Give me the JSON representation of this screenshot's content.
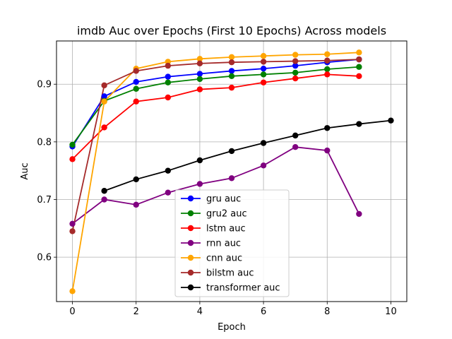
{
  "chart_data": {
    "type": "line",
    "title": "imdb Auc over Epochs (First 10 Epochs) Across models",
    "xlabel": "Epoch",
    "ylabel": "Auc",
    "xlim": [
      -0.5,
      10.5
    ],
    "ylim": [
      0.523,
      0.975
    ],
    "xticks": [
      0,
      2,
      4,
      6,
      8,
      10
    ],
    "yticks": [
      0.6,
      0.7,
      0.8,
      0.9
    ],
    "xtick_labels": [
      "0",
      "2",
      "4",
      "6",
      "8",
      "10"
    ],
    "ytick_labels": [
      "0.6",
      "0.7",
      "0.8",
      "0.9"
    ],
    "grid": true,
    "legend_position": "lower-center",
    "series": [
      {
        "name": "gru auc",
        "color": "#0000ff",
        "x": [
          0,
          1,
          2,
          3,
          4,
          5,
          6,
          7,
          8,
          9
        ],
        "y": [
          0.792,
          0.879,
          0.904,
          0.913,
          0.918,
          0.923,
          0.927,
          0.932,
          0.938,
          0.943
        ]
      },
      {
        "name": "gru2 auc",
        "color": "#008000",
        "x": [
          0,
          1,
          2,
          3,
          4,
          5,
          6,
          7,
          8,
          9
        ],
        "y": [
          0.795,
          0.871,
          0.892,
          0.903,
          0.909,
          0.914,
          0.917,
          0.92,
          0.926,
          0.93
        ]
      },
      {
        "name": "lstm auc",
        "color": "#ff0000",
        "x": [
          0,
          1,
          2,
          3,
          4,
          5,
          6,
          7,
          8,
          9
        ],
        "y": [
          0.77,
          0.825,
          0.87,
          0.877,
          0.891,
          0.894,
          0.903,
          0.91,
          0.917,
          0.914
        ]
      },
      {
        "name": "rnn auc",
        "color": "#800080",
        "x": [
          0,
          1,
          2,
          3,
          4,
          5,
          6,
          7,
          8,
          9
        ],
        "y": [
          0.658,
          0.7,
          0.691,
          0.712,
          0.727,
          0.737,
          0.759,
          0.791,
          0.785,
          0.675
        ]
      },
      {
        "name": "cnn auc",
        "color": "#ffa500",
        "x": [
          0,
          1,
          2,
          3,
          4,
          5,
          6,
          7,
          8,
          9
        ],
        "y": [
          0.541,
          0.87,
          0.927,
          0.939,
          0.944,
          0.947,
          0.949,
          0.951,
          0.952,
          0.955
        ]
      },
      {
        "name": "bilstm auc",
        "color": "#a52a2a",
        "x": [
          0,
          1,
          2,
          3,
          4,
          5,
          6,
          7,
          8,
          9
        ],
        "y": [
          0.645,
          0.898,
          0.923,
          0.932,
          0.936,
          0.938,
          0.939,
          0.94,
          0.941,
          0.943
        ]
      },
      {
        "name": "transformer auc",
        "color": "#000000",
        "x": [
          1,
          2,
          3,
          4,
          5,
          6,
          7,
          8,
          9,
          10
        ],
        "y": [
          0.715,
          0.735,
          0.75,
          0.768,
          0.784,
          0.798,
          0.811,
          0.824,
          0.831,
          0.837
        ]
      }
    ]
  }
}
